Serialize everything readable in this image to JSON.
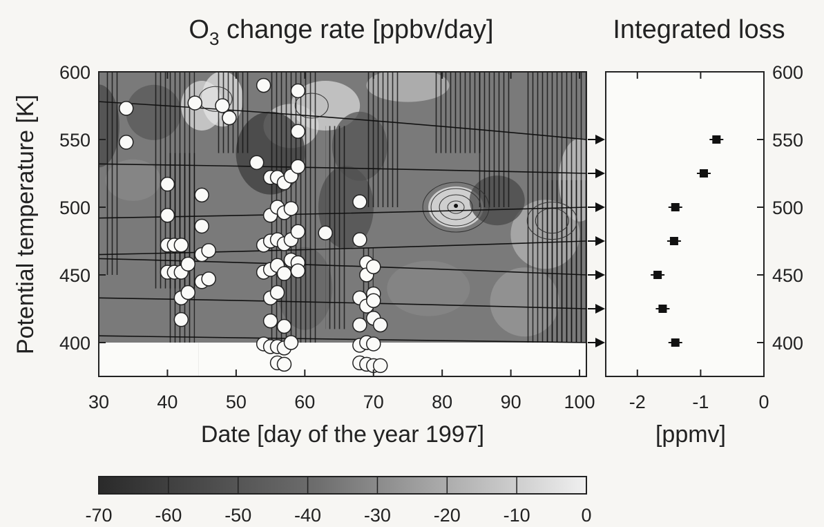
{
  "chart_data": [
    {
      "type": "heatmap",
      "title": "O3 change rate [ppbv/day]",
      "title_main": "O",
      "title_sub": "3",
      "title_rest": " change rate [ppbv/day]",
      "xlabel": "Date [day of the year 1997]",
      "ylabel": "Potential temperature [K]",
      "xlim": [
        30,
        101
      ],
      "ylim": [
        375,
        600
      ],
      "xticks": [
        30,
        40,
        50,
        60,
        70,
        80,
        90,
        100
      ],
      "yticks": [
        400,
        450,
        500,
        550,
        600
      ],
      "colorbar": {
        "ticks": [
          -70,
          -60,
          -50,
          -40,
          -30,
          -20,
          -10,
          0
        ],
        "range": [
          -70,
          0
        ],
        "low_color": "#2a2a2a",
        "high_color": "#f2f2f2"
      },
      "no_data_regions": [
        {
          "x": [
            30,
            44.5
          ],
          "y": [
            375,
            400
          ]
        },
        {
          "x": [
            44.5,
            101
          ],
          "y": [
            375,
            400
          ]
        }
      ],
      "trajectories_end_theta": [
        550,
        525,
        500,
        475,
        450,
        425,
        400
      ],
      "trajectories_start_theta": [
        578,
        532,
        492,
        465,
        462,
        433,
        405
      ],
      "sonde_points": [
        [
          34,
          573
        ],
        [
          34,
          548
        ],
        [
          40,
          517
        ],
        [
          40,
          494
        ],
        [
          40,
          472
        ],
        [
          40,
          452
        ],
        [
          41,
          472
        ],
        [
          41,
          452
        ],
        [
          42,
          472
        ],
        [
          42,
          452
        ],
        [
          42,
          433
        ],
        [
          42,
          417
        ],
        [
          43,
          458
        ],
        [
          43,
          437
        ],
        [
          44,
          577
        ],
        [
          45,
          509
        ],
        [
          45,
          486
        ],
        [
          45,
          465
        ],
        [
          45,
          445
        ],
        [
          46,
          468
        ],
        [
          46,
          447
        ],
        [
          48,
          575
        ],
        [
          49,
          566
        ],
        [
          53,
          533
        ],
        [
          54,
          590
        ],
        [
          54,
          472
        ],
        [
          54,
          452
        ],
        [
          54,
          399
        ],
        [
          55,
          522
        ],
        [
          55,
          494
        ],
        [
          55,
          475
        ],
        [
          55,
          454
        ],
        [
          55,
          433
        ],
        [
          55,
          416
        ],
        [
          55,
          397
        ],
        [
          56,
          522
        ],
        [
          56,
          500
        ],
        [
          56,
          476
        ],
        [
          56,
          457
        ],
        [
          56,
          437
        ],
        [
          56,
          397
        ],
        [
          56,
          385
        ],
        [
          57,
          518
        ],
        [
          57,
          496
        ],
        [
          57,
          473
        ],
        [
          57,
          451
        ],
        [
          57,
          412
        ],
        [
          57,
          396
        ],
        [
          57,
          384
        ],
        [
          58,
          523
        ],
        [
          58,
          499
        ],
        [
          58,
          476
        ],
        [
          58,
          461
        ],
        [
          58,
          400
        ],
        [
          59,
          586
        ],
        [
          59,
          556
        ],
        [
          59,
          530
        ],
        [
          59,
          482
        ],
        [
          59,
          459
        ],
        [
          59,
          453
        ],
        [
          63,
          481
        ],
        [
          68,
          504
        ],
        [
          68,
          476
        ],
        [
          68,
          433
        ],
        [
          68,
          413
        ],
        [
          68,
          398
        ],
        [
          68,
          385
        ],
        [
          69,
          459
        ],
        [
          69,
          450
        ],
        [
          69,
          427
        ],
        [
          69,
          400
        ],
        [
          69,
          384
        ],
        [
          70,
          456
        ],
        [
          70,
          436
        ],
        [
          70,
          431
        ],
        [
          70,
          418
        ],
        [
          70,
          399
        ],
        [
          70,
          383
        ],
        [
          71,
          413
        ],
        [
          71,
          383
        ]
      ]
    },
    {
      "type": "scatter",
      "title": "Integrated loss",
      "xlabel": "[ppmv]",
      "xlim": [
        -2.5,
        0
      ],
      "ylim": [
        375,
        600
      ],
      "xticks": [
        -2,
        -1,
        0
      ],
      "yticks": [
        400,
        450,
        500,
        550,
        600
      ],
      "points": [
        {
          "x": -0.75,
          "y": 550
        },
        {
          "x": -0.95,
          "y": 525
        },
        {
          "x": -1.4,
          "y": 500
        },
        {
          "x": -1.42,
          "y": 475
        },
        {
          "x": -1.68,
          "y": 450
        },
        {
          "x": -1.6,
          "y": 425
        },
        {
          "x": -1.4,
          "y": 400
        }
      ]
    }
  ]
}
